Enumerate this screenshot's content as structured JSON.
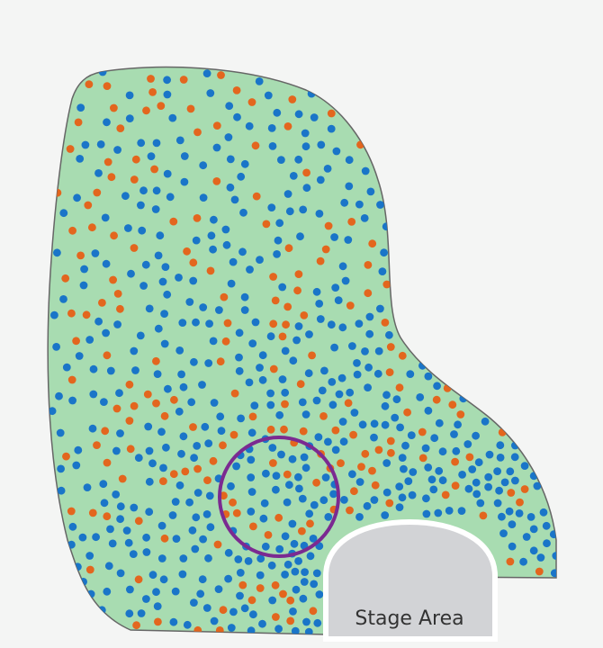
{
  "labels": {
    "stage": "Stage Area"
  },
  "colors": {
    "page_background": "#f4f5f4",
    "venue_fill": "#a8dcb1",
    "venue_border": "#666666",
    "stage_fill": "#d2d3d6",
    "stage_border": "#ffffff",
    "dot_blue": "#1a75c8",
    "dot_orange": "#e3661e",
    "highlight_ring": "#7b2a91"
  },
  "legend": [],
  "annotations": [
    {
      "kind": "highlight-ring"
    }
  ]
}
